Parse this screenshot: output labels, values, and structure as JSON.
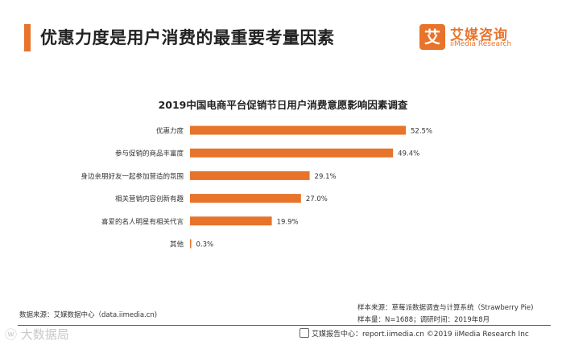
{
  "header": {
    "title": "优惠力度是用户消费的最重要考量因素",
    "logo_cn": "艾媒咨询",
    "logo_en": "iiMedia Research",
    "logo_mark": "艾"
  },
  "chart_data": {
    "type": "bar",
    "orientation": "horizontal",
    "title": "2019中国电商平台促销节日用户消费意愿影响因素调查",
    "categories": [
      "优惠力度",
      "参与促销的商品丰富度",
      "身边亲朋好友一起参加营造的氛围",
      "相关营销内容创新有趣",
      "喜爱的名人明星有相关代言",
      "其他"
    ],
    "values": [
      52.5,
      49.4,
      29.1,
      27.0,
      19.9,
      0.3
    ],
    "value_labels": [
      "52.5%",
      "49.4%",
      "29.1%",
      "27.0%",
      "19.9%",
      "0.3%"
    ],
    "unit": "%",
    "xlim": [
      0,
      60
    ],
    "bar_color": "#e8732a",
    "grid": false
  },
  "footer": {
    "source": "数据来源：艾媒数据中心（data.iimedia.cn)",
    "sample_source": "样本来源：草莓派数据调查与计算系统（Strawberry Pie)",
    "sample_size": "样本量：N=1688；调研时间：2019年8月",
    "center": "艾媒报告中心：report.iimedia.cn   ©2019  iiMedia Research  Inc",
    "watermark": "大数据局"
  }
}
